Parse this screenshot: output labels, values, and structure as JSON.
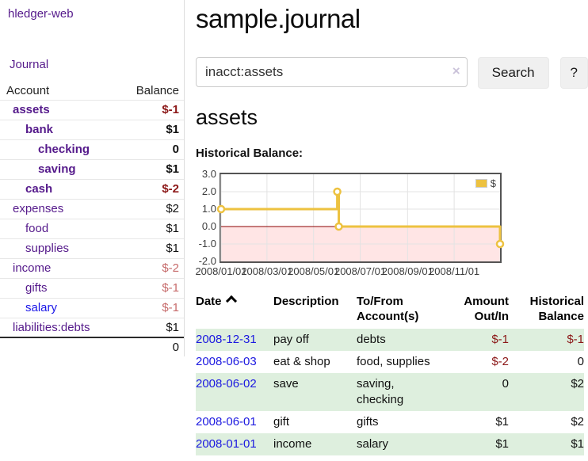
{
  "app": {
    "title": "hledger-web"
  },
  "sidebar": {
    "journal_link": "Journal",
    "accounts_header": {
      "account": "Account",
      "balance": "Balance"
    },
    "accounts": [
      {
        "name": "assets",
        "indent": 1,
        "bold": true,
        "balance": "$-1"
      },
      {
        "name": "bank",
        "indent": 2,
        "bold": true,
        "balance": "$1"
      },
      {
        "name": "checking",
        "indent": 3,
        "bold": true,
        "balance": "0"
      },
      {
        "name": "saving",
        "indent": 3,
        "bold": true,
        "balance": "$1"
      },
      {
        "name": "cash",
        "indent": 2,
        "bold": true,
        "balance": "$-2"
      },
      {
        "name": "expenses",
        "indent": 1,
        "bold": false,
        "balance": "$2"
      },
      {
        "name": "food",
        "indent": 2,
        "bold": false,
        "balance": "$1"
      },
      {
        "name": "supplies",
        "indent": 2,
        "bold": false,
        "balance": "$1"
      },
      {
        "name": "income",
        "indent": 1,
        "bold": false,
        "balance": "$-2"
      },
      {
        "name": "gifts",
        "indent": 2,
        "bold": false,
        "balance": "$-1"
      },
      {
        "name": "salary",
        "indent": 2,
        "bold": false,
        "balance": "$-1",
        "link_style": "unvisited"
      },
      {
        "name": "liabilities:debts",
        "indent": 1,
        "bold": false,
        "balance": "$1"
      }
    ],
    "total": "0"
  },
  "header": {
    "title": "sample.journal"
  },
  "search": {
    "value": "inacct:assets",
    "clear_icon": "×",
    "button": "Search",
    "help_button": "?"
  },
  "account_page": {
    "title": "assets",
    "chart_label": "Historical Balance:"
  },
  "chart_data": {
    "type": "line",
    "title": "Historical Balance",
    "step": true,
    "series": [
      {
        "name": "$",
        "color": "#edc240",
        "points": [
          {
            "date": "2008-01-01",
            "value": 1
          },
          {
            "date": "2008-06-01",
            "value": 2
          },
          {
            "date": "2008-06-03",
            "value": 0
          },
          {
            "date": "2008-12-31",
            "value": -1
          }
        ]
      }
    ],
    "x_range": [
      "2008/01/01",
      "2008/12/31"
    ],
    "x_tick_labels": [
      "2008/01/01",
      "2008/03/01",
      "2008/05/01",
      "2008/07/01",
      "2008/09/01",
      "2008/11/01"
    ],
    "y_tick_labels": [
      "3.0",
      "2.0",
      "1.0",
      "0.0",
      "-1.0",
      "-2.0"
    ],
    "ylim": [
      -2,
      3
    ],
    "grid": true,
    "legend": {
      "label": "$",
      "position": "top-right"
    },
    "colors": {
      "line": "#edc240",
      "marker_fill": "#ffffff",
      "gridline": "#e3e3e3",
      "plot_border": "#545454",
      "zero_line": "#8b0000",
      "negative_region_fill": "rgba(255,0,0,0.10)"
    }
  },
  "register": {
    "columns": [
      {
        "line1": "Date",
        "line2": "",
        "align": "left",
        "sorted": "asc"
      },
      {
        "line1": "Description",
        "line2": "",
        "align": "left"
      },
      {
        "line1": "To/From",
        "line2": "Account(s)",
        "align": "left"
      },
      {
        "line1": "Amount",
        "line2": "Out/In",
        "align": "right"
      },
      {
        "line1": "Historical",
        "line2": "Balance",
        "align": "right"
      }
    ],
    "rows": [
      {
        "date": "2008-12-31",
        "description": "pay off",
        "accounts": "debts",
        "amount": "$-1",
        "balance": "$-1"
      },
      {
        "date": "2008-06-03",
        "description": "eat & shop",
        "accounts": "food, supplies",
        "amount": "$-2",
        "balance": "0"
      },
      {
        "date": "2008-06-02",
        "description": "save",
        "accounts": "saving,\nchecking",
        "amount": "0",
        "balance": "$2"
      },
      {
        "date": "2008-06-01",
        "description": "gift",
        "accounts": "gifts",
        "amount": "$1",
        "balance": "$2"
      },
      {
        "date": "2008-01-01",
        "description": "income",
        "accounts": "salary",
        "amount": "$1",
        "balance": "$1"
      }
    ]
  },
  "colors": {
    "link_visited_purple": "#551a8b",
    "link_unvisited_blue": "#1c19e0",
    "negative_strong": "#8c1818",
    "negative_dim": "#c66a6a",
    "row_stripe_green": "#deefde",
    "button_bg": "#f0f0f0"
  }
}
